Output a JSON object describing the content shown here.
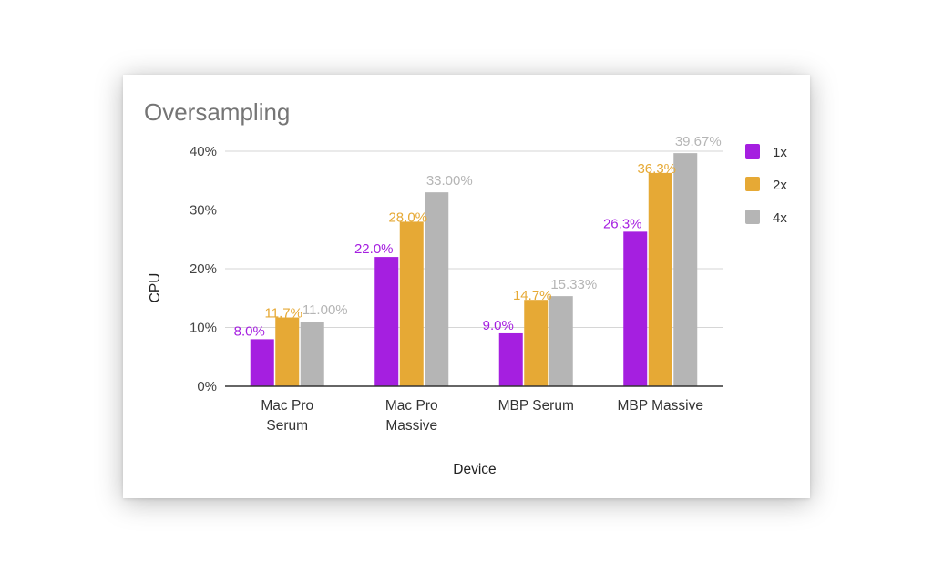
{
  "chart_data": {
    "type": "bar",
    "title": "Oversampling",
    "xlabel": "Device",
    "ylabel": "CPU",
    "categories": [
      [
        "Mac Pro",
        "Serum"
      ],
      [
        "Mac Pro",
        "Massive"
      ],
      [
        "MBP Serum"
      ],
      [
        "MBP Massive"
      ]
    ],
    "ylim": [
      0,
      40
    ],
    "yticks": [
      "0%",
      "10%",
      "20%",
      "30%",
      "40%"
    ],
    "grid": true,
    "legend_position": "right",
    "series": [
      {
        "name": "1x",
        "color": "#a51fe0",
        "values": [
          8.0,
          22.0,
          9.0,
          26.3
        ],
        "labels": [
          "8.0%",
          "22.0%",
          "9.0%",
          "26.3%"
        ]
      },
      {
        "name": "2x",
        "color": "#e6a935",
        "values": [
          11.7,
          28.0,
          14.7,
          36.3
        ],
        "labels": [
          "11.7%",
          "28.0%",
          "14.7%",
          "36.3%"
        ]
      },
      {
        "name": "4x",
        "color": "#b5b5b5",
        "values": [
          11.0,
          33.0,
          15.33,
          39.67
        ],
        "labels": [
          "11.00%",
          "33.00%",
          "15.33%",
          "39.67%"
        ]
      }
    ]
  }
}
